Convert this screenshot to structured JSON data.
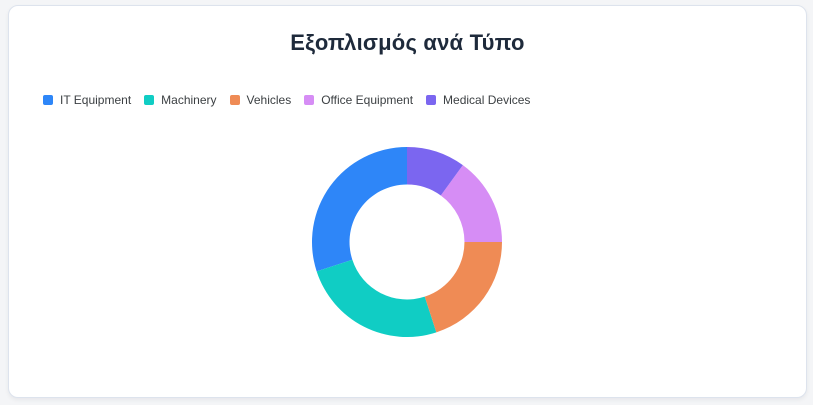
{
  "card": {
    "title": "Εξοπλισμός ανά Τύπο"
  },
  "chart_data": {
    "type": "pie",
    "subtype": "donut",
    "title": "Εξοπλισμός ανά Τύπο",
    "inner_radius_ratio": 0.605,
    "start_angle_deg": 0,
    "direction": "counterclockwise",
    "legend_position": "top-left",
    "values_are": "percent (estimated from segment angles)",
    "series": [
      {
        "name": "IT Equipment",
        "value": 30,
        "color": "#2e86f8"
      },
      {
        "name": "Machinery",
        "value": 25,
        "color": "#10cdc4"
      },
      {
        "name": "Vehicles",
        "value": 20,
        "color": "#ef8b55"
      },
      {
        "name": "Office Equipment",
        "value": 15,
        "color": "#d68df5"
      },
      {
        "name": "Medical Devices",
        "value": 10,
        "color": "#7b66f0"
      }
    ]
  }
}
